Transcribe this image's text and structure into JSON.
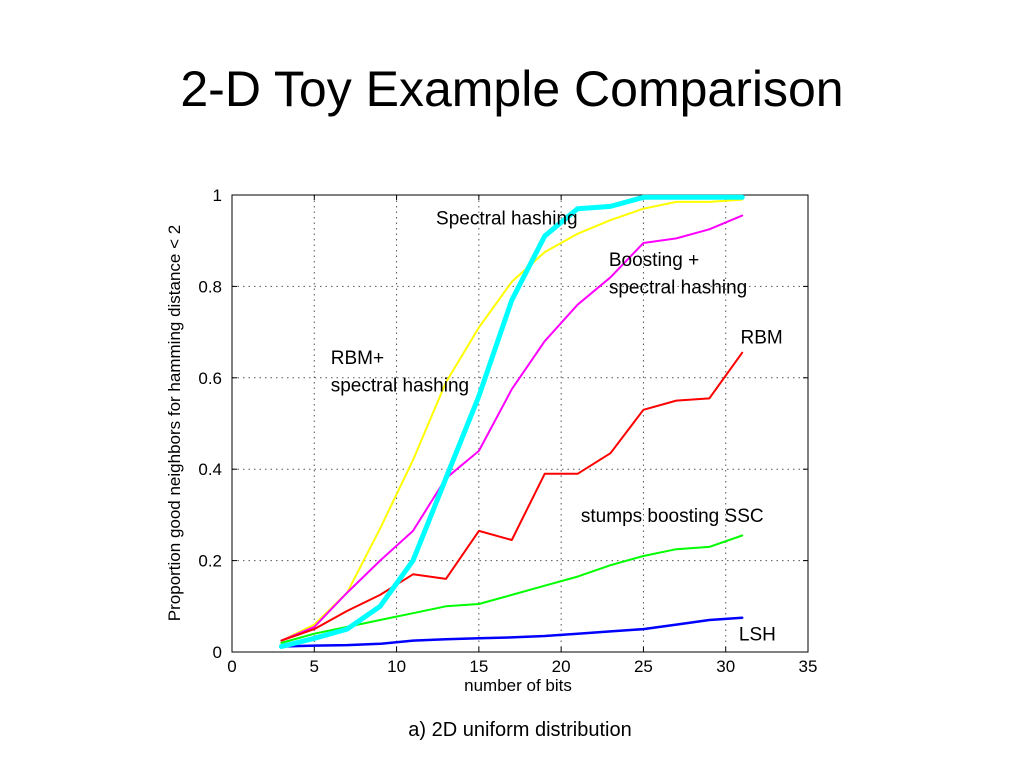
{
  "slide": {
    "title": "2-D Toy Example Comparison"
  },
  "chart_data": {
    "type": "line",
    "title": "",
    "xlabel": "number of bits",
    "ylabel": "Proportion good neighbors for hamming distance < 2",
    "caption": "a) 2D uniform distribution",
    "xlim": [
      0,
      35
    ],
    "ylim": [
      0,
      1
    ],
    "xticks": [
      0,
      5,
      10,
      15,
      20,
      25,
      30,
      35
    ],
    "yticks": [
      0,
      0.2,
      0.4,
      0.6,
      0.8,
      1
    ],
    "ytick_labels": [
      "0",
      "0.2",
      "0.4",
      "0.6",
      "0.8",
      "1"
    ],
    "grid": true,
    "legend": "none",
    "x": [
      3,
      5,
      7,
      9,
      11,
      13,
      15,
      17,
      19,
      21,
      23,
      25,
      27,
      29,
      31
    ],
    "series": [
      {
        "key": "yellow",
        "color": "#ffff00",
        "width": 2,
        "values": [
          0.025,
          0.06,
          0.13,
          0.27,
          0.42,
          0.59,
          0.71,
          0.81,
          0.875,
          0.915,
          0.945,
          0.97,
          0.985,
          0.985,
          0.99
        ]
      },
      {
        "key": "magenta",
        "color": "#ff00ff",
        "width": 2,
        "values": [
          0.025,
          0.055,
          0.13,
          0.2,
          0.265,
          0.38,
          0.44,
          0.575,
          0.68,
          0.76,
          0.82,
          0.895,
          0.905,
          0.925,
          0.955
        ]
      },
      {
        "key": "red",
        "color": "#ff0000",
        "width": 2,
        "values": [
          0.025,
          0.05,
          0.09,
          0.125,
          0.17,
          0.16,
          0.265,
          0.245,
          0.39,
          0.39,
          0.435,
          0.53,
          0.55,
          0.555,
          0.655
        ]
      },
      {
        "key": "green",
        "color": "#00ff00",
        "width": 2,
        "values": [
          0.02,
          0.04,
          0.055,
          0.07,
          0.085,
          0.1,
          0.105,
          0.125,
          0.145,
          0.165,
          0.19,
          0.21,
          0.225,
          0.23,
          0.255
        ]
      },
      {
        "key": "blue",
        "color": "#0000ff",
        "width": 2.5,
        "values": [
          0.012,
          0.014,
          0.015,
          0.018,
          0.025,
          0.028,
          0.03,
          0.032,
          0.035,
          0.04,
          0.045,
          0.05,
          0.06,
          0.07,
          0.075
        ]
      },
      {
        "key": "cyan",
        "color": "#00ffff",
        "width": 5,
        "values": [
          0.012,
          0.03,
          0.05,
          0.1,
          0.2,
          0.38,
          0.56,
          0.77,
          0.91,
          0.97,
          0.975,
          0.995,
          0.995,
          0.995,
          0.995
        ]
      }
    ],
    "annotations": [
      {
        "text": "Spectral hashing",
        "x": 21,
        "y": 0.935,
        "anchor": "end"
      },
      {
        "text": "Boosting +",
        "x": 22.9,
        "y": 0.845,
        "anchor": "start"
      },
      {
        "text": "spectral hashing",
        "x": 22.9,
        "y": 0.785,
        "anchor": "start"
      },
      {
        "text": "RBM",
        "x": 30.9,
        "y": 0.675,
        "anchor": "start"
      },
      {
        "text": "RBM+",
        "x": 6.0,
        "y": 0.63,
        "anchor": "start"
      },
      {
        "text": "spectral hashing",
        "x": 6.0,
        "y": 0.57,
        "anchor": "start"
      },
      {
        "text": "stumps boosting SSC",
        "x": 21.2,
        "y": 0.285,
        "anchor": "start"
      },
      {
        "text": "LSH",
        "x": 30.8,
        "y": 0.025,
        "anchor": "start"
      }
    ]
  }
}
